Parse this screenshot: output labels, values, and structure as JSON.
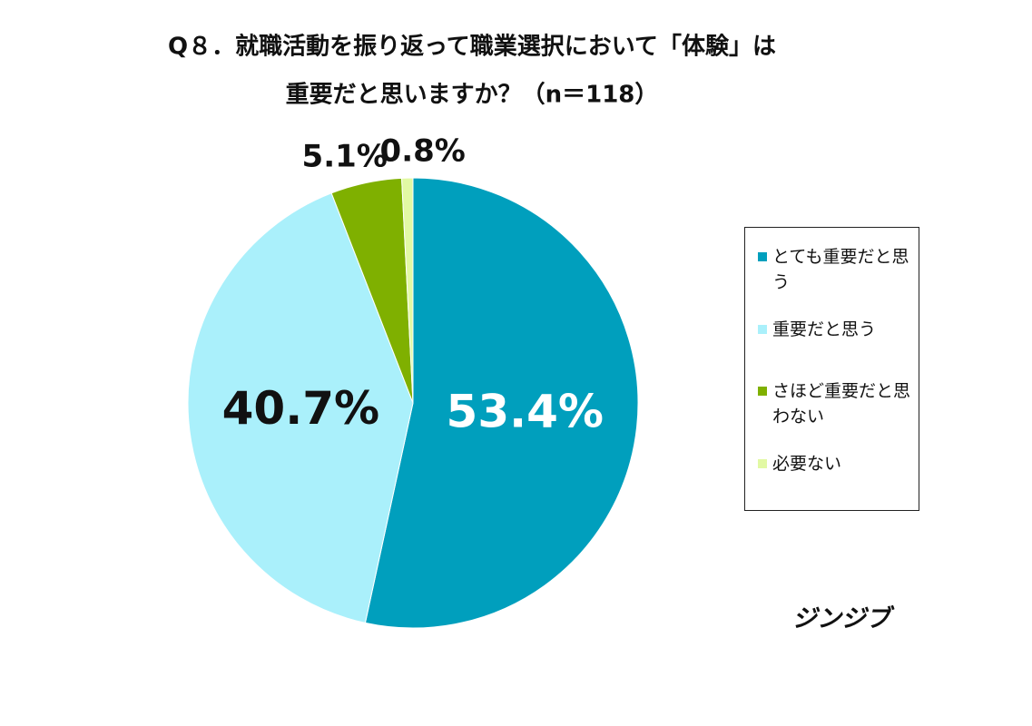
{
  "chart_data": {
    "type": "pie",
    "title": "Q８．就職活動を振り返って職業選択において「体験」は",
    "subtitle": "重要だと思いますか？（n＝118）",
    "categories": [
      "とても重要だと思う",
      "重要だと思う",
      "さほど重要だと思わない",
      "必要ない"
    ],
    "values": [
      53.4,
      40.7,
      5.1,
      0.8
    ],
    "value_labels": [
      "53.4%",
      "40.7%",
      "5.1%",
      "0.8%"
    ],
    "colors": [
      "#009fbd",
      "#aaf0fb",
      "#7fb000",
      "#e2f9a4"
    ],
    "label_colors": [
      "#ffffff",
      "#111111",
      "#111111",
      "#111111"
    ],
    "source": "ジンジブ"
  }
}
